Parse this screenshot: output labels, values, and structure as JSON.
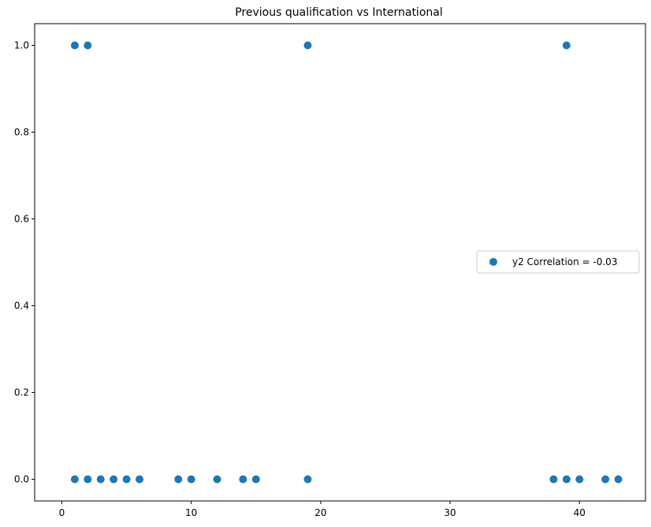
{
  "chart_data": {
    "type": "scatter",
    "title": "Previous qualification vs International",
    "xlabel": "",
    "ylabel": "",
    "xlim": [
      -2.1,
      45.1
    ],
    "ylim": [
      -0.05,
      1.05
    ],
    "xticks": [
      0,
      10,
      20,
      30,
      40
    ],
    "yticks": [
      0.0,
      0.2,
      0.4,
      0.6,
      0.8,
      1.0
    ],
    "xtick_labels": [
      "0",
      "10",
      "20",
      "30",
      "40"
    ],
    "ytick_labels": [
      "0.0",
      "0.2",
      "0.4",
      "0.6",
      "0.8",
      "1.0"
    ],
    "grid": false,
    "legend_position": "center-right",
    "series": [
      {
        "name": "y2 Correlation = -0.03",
        "color": "#1f77b4",
        "x": [
          1,
          2,
          19,
          39,
          1,
          2,
          3,
          4,
          5,
          6,
          9,
          10,
          12,
          14,
          15,
          19,
          38,
          39,
          40,
          42,
          43
        ],
        "y": [
          1,
          1,
          1,
          1,
          0,
          0,
          0,
          0,
          0,
          0,
          0,
          0,
          0,
          0,
          0,
          0,
          0,
          0,
          0,
          0,
          0
        ]
      }
    ]
  }
}
